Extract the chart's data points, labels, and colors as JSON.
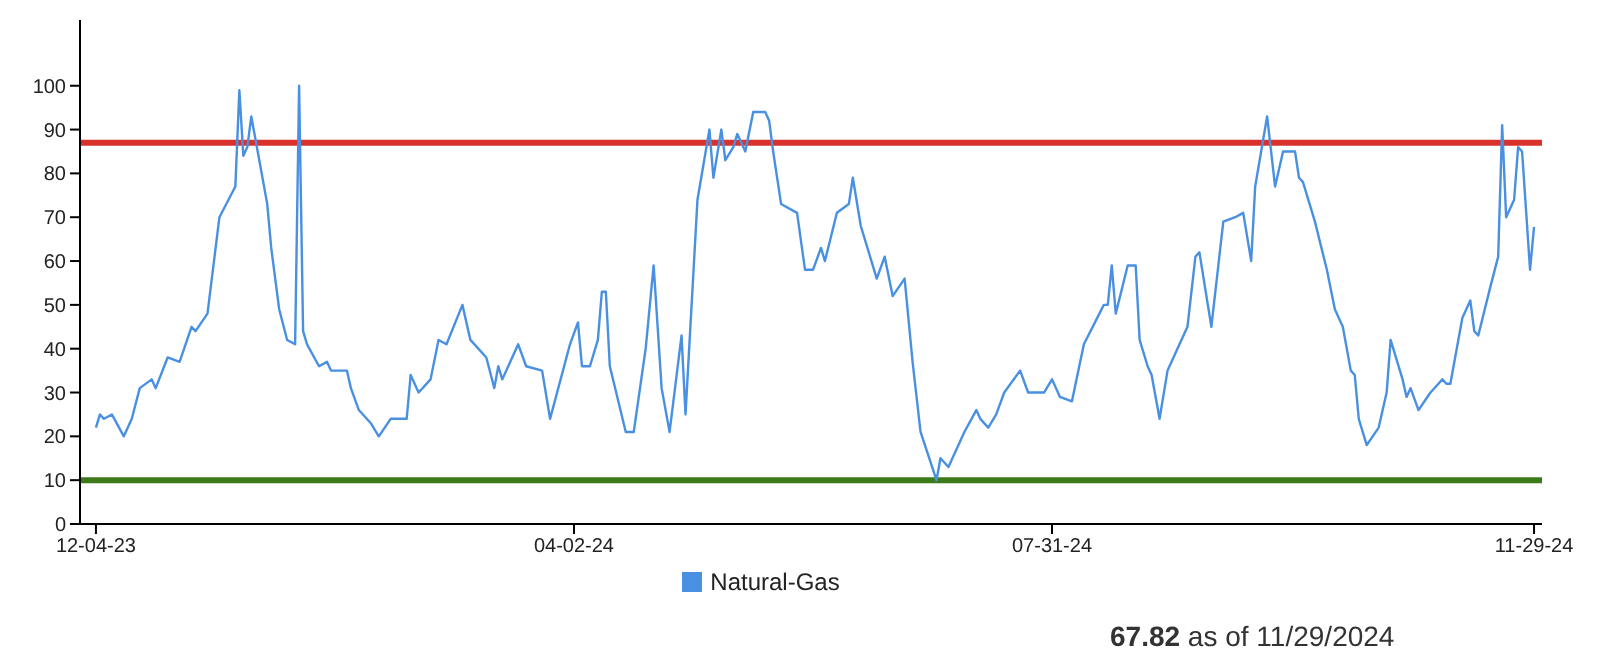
{
  "chart_data": {
    "type": "line",
    "x": [
      "2023-12-04",
      "2023-12-05",
      "2023-12-06",
      "2023-12-08",
      "2023-12-11",
      "2023-12-13",
      "2023-12-15",
      "2023-12-18",
      "2023-12-19",
      "2023-12-22",
      "2023-12-25",
      "2023-12-28",
      "2023-12-29",
      "2024-01-01",
      "2024-01-04",
      "2024-01-08",
      "2024-01-09",
      "2024-01-10",
      "2024-01-11",
      "2024-01-12",
      "2024-01-13",
      "2024-01-16",
      "2024-01-17",
      "2024-01-19",
      "2024-01-21",
      "2024-01-23",
      "2024-01-24",
      "2024-01-25",
      "2024-01-26",
      "2024-01-29",
      "2024-01-31",
      "2024-02-01",
      "2024-02-02",
      "2024-02-05",
      "2024-02-06",
      "2024-02-08",
      "2024-02-11",
      "2024-02-13",
      "2024-02-16",
      "2024-02-20",
      "2024-02-21",
      "2024-02-23",
      "2024-02-26",
      "2024-02-28",
      "2024-03-01",
      "2024-03-05",
      "2024-03-07",
      "2024-03-11",
      "2024-03-13",
      "2024-03-14",
      "2024-03-15",
      "2024-03-19",
      "2024-03-21",
      "2024-03-25",
      "2024-03-27",
      "2024-04-01",
      "2024-04-03",
      "2024-04-04",
      "2024-04-06",
      "2024-04-08",
      "2024-04-09",
      "2024-04-10",
      "2024-04-11",
      "2024-04-15",
      "2024-04-17",
      "2024-04-20",
      "2024-04-22",
      "2024-04-24",
      "2024-04-26",
      "2024-04-29",
      "2024-04-30",
      "2024-05-03",
      "2024-05-06",
      "2024-05-07",
      "2024-05-09",
      "2024-05-10",
      "2024-05-12",
      "2024-05-13",
      "2024-05-15",
      "2024-05-17",
      "2024-05-20",
      "2024-05-21",
      "2024-05-22",
      "2024-05-24",
      "2024-05-28",
      "2024-05-30",
      "2024-06-01",
      "2024-06-03",
      "2024-06-04",
      "2024-06-07",
      "2024-06-10",
      "2024-06-11",
      "2024-06-13",
      "2024-06-17",
      "2024-06-19",
      "2024-06-21",
      "2024-06-24",
      "2024-06-26",
      "2024-06-28",
      "2024-07-02",
      "2024-07-03",
      "2024-07-05",
      "2024-07-08",
      "2024-07-09",
      "2024-07-12",
      "2024-07-13",
      "2024-07-15",
      "2024-07-17",
      "2024-07-19",
      "2024-07-23",
      "2024-07-25",
      "2024-07-29",
      "2024-07-31",
      "2024-08-02",
      "2024-08-05",
      "2024-08-08",
      "2024-08-13",
      "2024-08-14",
      "2024-08-15",
      "2024-08-16",
      "2024-08-19",
      "2024-08-21",
      "2024-08-22",
      "2024-08-24",
      "2024-08-25",
      "2024-08-27",
      "2024-08-29",
      "2024-09-03",
      "2024-09-05",
      "2024-09-06",
      "2024-09-09",
      "2024-09-12",
      "2024-09-15",
      "2024-09-17",
      "2024-09-19",
      "2024-09-20",
      "2024-09-23",
      "2024-09-25",
      "2024-09-27",
      "2024-09-30",
      "2024-10-01",
      "2024-10-02",
      "2024-10-05",
      "2024-10-08",
      "2024-10-10",
      "2024-10-12",
      "2024-10-14",
      "2024-10-15",
      "2024-10-16",
      "2024-10-18",
      "2024-10-21",
      "2024-10-23",
      "2024-10-24",
      "2024-10-27",
      "2024-10-28",
      "2024-10-29",
      "2024-10-31",
      "2024-11-03",
      "2024-11-05",
      "2024-11-06",
      "2024-11-07",
      "2024-11-08",
      "2024-11-11",
      "2024-11-13",
      "2024-11-14",
      "2024-11-15",
      "2024-11-18",
      "2024-11-20",
      "2024-11-21",
      "2024-11-22",
      "2024-11-24",
      "2024-11-25",
      "2024-11-26",
      "2024-11-28",
      "2024-11-29"
    ],
    "series": [
      {
        "name": "Natural-Gas",
        "color": "#4a90e2",
        "values": [
          22,
          25,
          24,
          25,
          20,
          24,
          31,
          33,
          31,
          38,
          37,
          45,
          44,
          48,
          70,
          77,
          99,
          84,
          86,
          93,
          88,
          73,
          63,
          49,
          42,
          41,
          100,
          44,
          41,
          36,
          37,
          35,
          35,
          35,
          31,
          26,
          23,
          20,
          24,
          24,
          34,
          30,
          33,
          42,
          41,
          50,
          42,
          38,
          31,
          36,
          33,
          41,
          36,
          35,
          24,
          41,
          46,
          36,
          36,
          42,
          53,
          53,
          36,
          21,
          21,
          40,
          59,
          31,
          21,
          43,
          25,
          74,
          90,
          79,
          90,
          83,
          86,
          89,
          85,
          94,
          94,
          92,
          85,
          73,
          71,
          58,
          58,
          63,
          60,
          71,
          73,
          79,
          68,
          56,
          61,
          52,
          56,
          37,
          21,
          10,
          15,
          13,
          19,
          21,
          26,
          24,
          22,
          25,
          30,
          35,
          30,
          30,
          33,
          29,
          28,
          41,
          50,
          50,
          59,
          48,
          59,
          59,
          42,
          36,
          34,
          24,
          35,
          45,
          61,
          62,
          45,
          69,
          70,
          71,
          60,
          77,
          93,
          77,
          85,
          85,
          79,
          78,
          69,
          58,
          49,
          45,
          35,
          34,
          24,
          18,
          22,
          30,
          42,
          33,
          29,
          31,
          26,
          30,
          32,
          33,
          32,
          32,
          47,
          51,
          44,
          43,
          54,
          61,
          91,
          70,
          74,
          86,
          85,
          58,
          67.82
        ]
      }
    ],
    "xlim": [
      "2023-11-30",
      "2024-12-01"
    ],
    "xticks": [
      {
        "value": "2023-12-04",
        "label": "12-04-23"
      },
      {
        "value": "2024-04-02",
        "label": "04-02-24"
      },
      {
        "value": "2024-07-31",
        "label": "07-31-24"
      },
      {
        "value": "2024-11-29",
        "label": "11-29-24"
      }
    ],
    "ylim": [
      0,
      115
    ],
    "yticks": [
      0,
      10,
      20,
      30,
      40,
      50,
      60,
      70,
      80,
      90,
      100
    ],
    "ref_lines": [
      {
        "axis": "y",
        "value": 87,
        "color": "#d9312b"
      },
      {
        "axis": "y",
        "value": 10,
        "color": "#3c7a1a"
      }
    ],
    "grid": false,
    "legend": "bottom",
    "marker": "none",
    "line_style": "solid",
    "annotations": [
      "67.82 as of 11/29/2024"
    ]
  }
}
